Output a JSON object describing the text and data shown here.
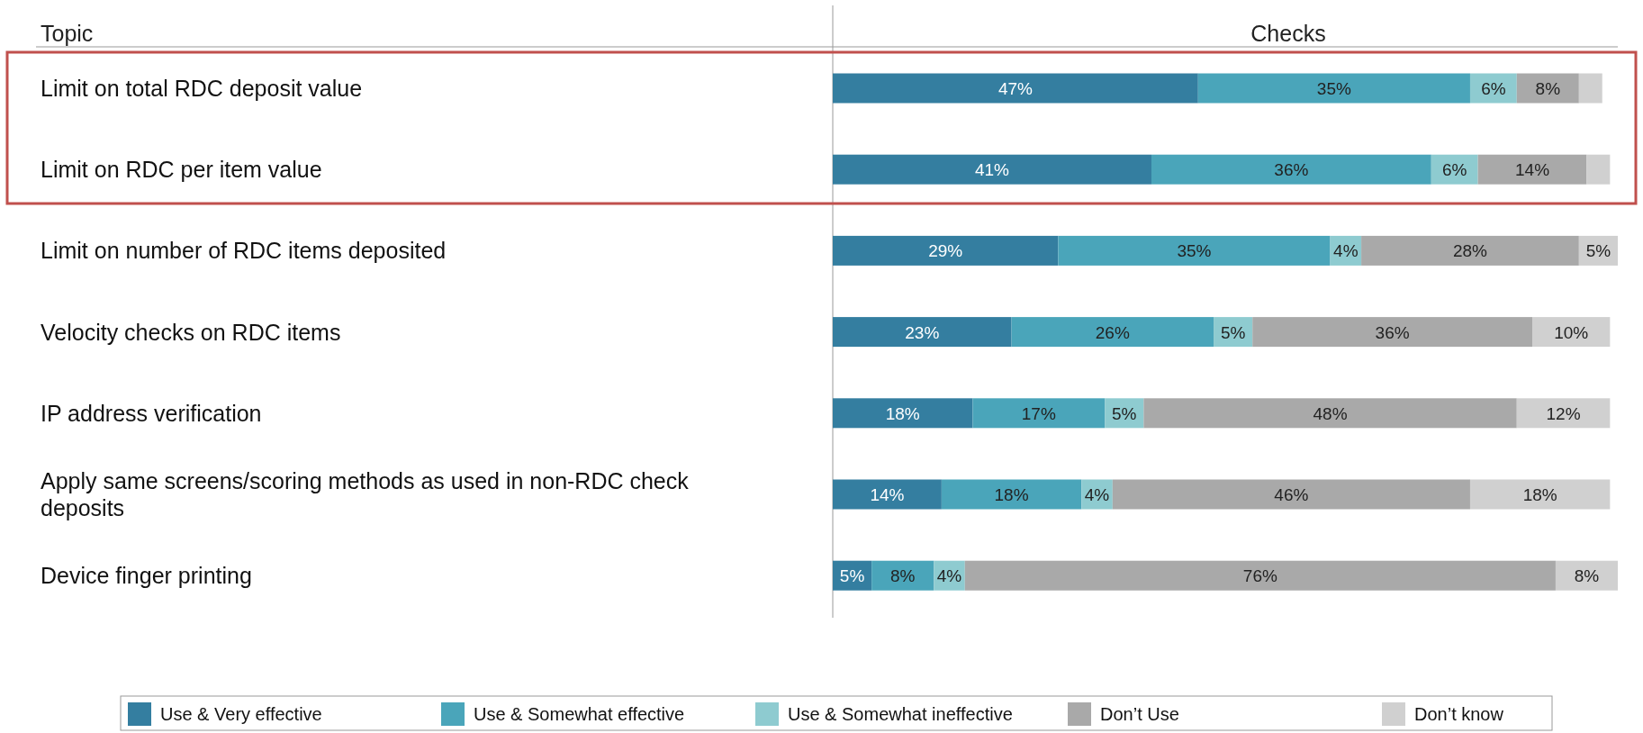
{
  "chart_data": {
    "type": "bar",
    "orientation": "horizontal",
    "stacked": true,
    "legend": "bottom",
    "ylabel": "Topic",
    "xlabel": "Checks",
    "categories": [
      "Limit on total RDC deposit value",
      "Limit on RDC per item value",
      "Limit on number of RDC items deposited",
      "Velocity checks on RDC items",
      "IP address verification",
      "Apply same screens/scoring methods as used in non-RDC check deposits",
      "Device finger printing"
    ],
    "series": [
      {
        "name": "Use & Very effective",
        "color": "#347ea0",
        "values": [
          47,
          41,
          29,
          23,
          18,
          14,
          5
        ],
        "value_labels": [
          "47%",
          "41%",
          "29%",
          "23%",
          "18%",
          "14%",
          "5%"
        ]
      },
      {
        "name": "Use & Somewhat effective",
        "color": "#4aa5ba",
        "values": [
          35,
          36,
          35,
          26,
          17,
          18,
          8
        ],
        "value_labels": [
          "35%",
          "36%",
          "35%",
          "26%",
          "17%",
          "18%",
          "8%"
        ]
      },
      {
        "name": "Use & Somewhat ineffective",
        "color": "#8ecbd0",
        "values": [
          6,
          6,
          4,
          5,
          5,
          4,
          4
        ],
        "value_labels": [
          "6%",
          "6%",
          "4%",
          "5%",
          "5%",
          "4%",
          "4%"
        ]
      },
      {
        "name": "Don’t Use",
        "color": "#a9a9a9",
        "values": [
          8,
          14,
          28,
          36,
          48,
          46,
          76
        ],
        "value_labels": [
          "8%",
          "14%",
          "28%",
          "36%",
          "48%",
          "46%",
          "76%"
        ]
      },
      {
        "name": "Don’t know",
        "color": "#d0d0d0",
        "values": [
          3,
          3,
          5,
          10,
          12,
          18,
          8
        ],
        "value_labels": [
          null,
          null,
          "5%",
          "10%",
          "12%",
          "18%",
          "8%"
        ]
      }
    ]
  }
}
